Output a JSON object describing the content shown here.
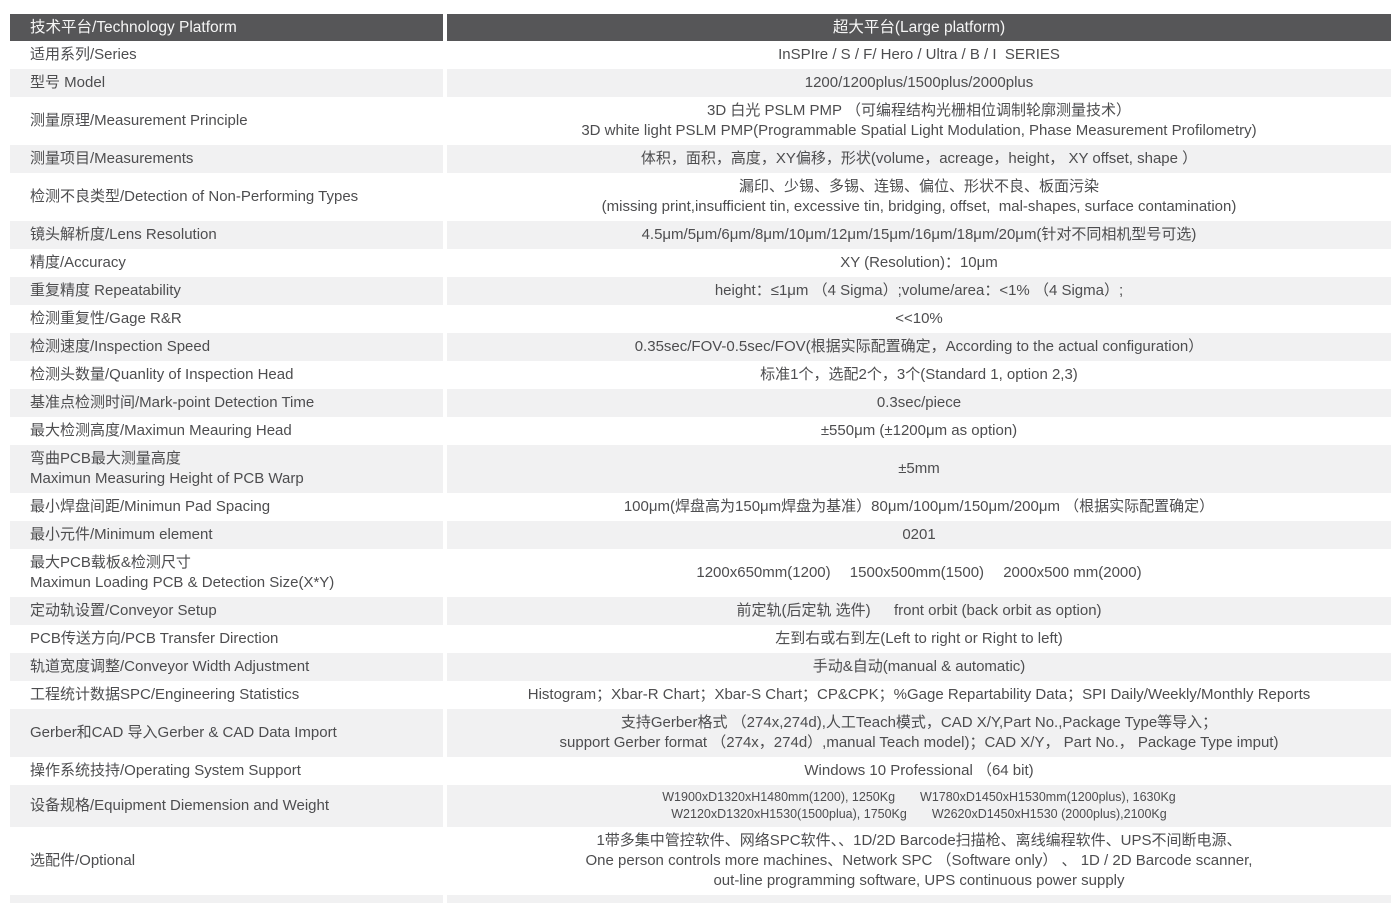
{
  "table": {
    "header": {
      "left": "技术平台/Technology Platform",
      "right": "超大平台(Large platform)"
    },
    "colors": {
      "header_bg": "#565658",
      "header_text": "#f6f6f6",
      "shaded_row_bg": "#f1f1f2",
      "body_text": "#4d4d4f"
    },
    "rows": [
      {
        "label": "适用系列/Series",
        "value": "InSPIre / S / F/ Hero / Ultra / B / I  SERIES"
      },
      {
        "label": "型号 Model",
        "value": "1200/1200plus/1500plus/2000plus"
      },
      {
        "label": "测量原理/Measurement Principle",
        "value": "3D 白光 PSLM PMP （可编程结构光栅相位调制轮廓测量技术）\n3D white light PSLM PMP(Programmable Spatial Light Modulation, Phase Measurement Profilometry)"
      },
      {
        "label": "测量项目/Measurements",
        "value": "体积，面积，高度，XY偏移，形状(volume，acreage，height， XY offset, shape ）"
      },
      {
        "label": "检测不良类型/Detection of Non-Performing Types",
        "value": "漏印、少锡、多锡、连锡、偏位、形状不良、板面污染\n(missing print,insufficient tin, excessive tin, bridging, offset,  mal-shapes, surface contamination)"
      },
      {
        "label": "镜头解析度/Lens Resolution",
        "value": "4.5μm/5μm/6μm/8μm/10μm/12μm/15μm/16μm/18μm/20μm(针对不同相机型号可选)"
      },
      {
        "label": "精度/Accuracy",
        "value": "XY (Resolution)：10μm"
      },
      {
        "label": "重复精度 Repeatability",
        "value": "height：≤1μm （4 Sigma）;volume/area：<1% （4 Sigma）;"
      },
      {
        "label": "检测重复性/Gage R&R",
        "value": "<<10%"
      },
      {
        "label": "检测速度/Inspection Speed",
        "value": "0.35sec/FOV-0.5sec/FOV(根据实际配置确定，According to the actual configuration）"
      },
      {
        "label": "检测头数量/Quanlity of Inspection Head",
        "value": "标准1个，选配2个，3个(Standard 1, option 2,3)"
      },
      {
        "label": "基准点检测时间/Mark-point Detection Time",
        "value": "0.3sec/piece"
      },
      {
        "label": "最大检测高度/Maximun Meauring Head",
        "value": "±550μm (±1200μm as option)"
      },
      {
        "label": "弯曲PCB最大测量高度\nMaximun Measuring Height of PCB Warp",
        "value": "±5mm"
      },
      {
        "label": "最小焊盘间距/Minimun Pad Spacing",
        "value": "100μm(焊盘高为150μm焊盘为基准）80μm/100μm/150μm/200μm （根据实际配置确定）"
      },
      {
        "label": "最小元件/Minimum element",
        "value": "0201"
      },
      {
        "label": "最大PCB载板&检测尺寸\nMaximun Loading PCB & Detection Size(X*Y)",
        "value": "1200x650mm(1200)　 1500x500mm(1500)　 2000x500 mm(2000)"
      },
      {
        "label": "定动轨设置/Conveyor Setup",
        "value": "前定轨(后定轨 选件)　  front orbit (back orbit as option)"
      },
      {
        "label": "PCB传送方向/PCB Transfer Direction",
        "value": "左到右或右到左(Left to right or Right to left)"
      },
      {
        "label": "轨道宽度调整/Conveyor Width Adjustment",
        "value": "手动&自动(manual & automatic)"
      },
      {
        "label": "工程统计数据SPC/Engineering Statistics",
        "value": "Histogram；Xbar-R Chart；Xbar-S Chart；CP&CPK；%Gage Repartability Data；SPI Daily/Weekly/Monthly Reports"
      },
      {
        "label": "Gerber和CAD 导入Gerber & CAD Data Import",
        "value": "支持Gerber格式 （274x,274d),人工Teach模式，CAD X/Y,Part No.,Package Type等导入；\nsupport Gerber format （274x，274d）,manual Teach model)；CAD X/Y， Part No.， Package Type imput)"
      },
      {
        "label": "操作系统技持/Operating System Support",
        "value": "Windows 10 Professional （64 bit)"
      },
      {
        "label": "设备规格/Equipment Diemension and Weight",
        "value": "W1900xD1320xH1480mm(1200), 1250Kg　　W1780xD1450xH1530mm(1200plus), 1630Kg\nW2120xD1320xH1530(1500plua), 1750Kg　　W2620xD1450xH1530 (2000plus),2100Kg",
        "small_value": true
      },
      {
        "label": "选配件/Optional",
        "value": "1带多集中管控软件、网络SPC软件、、1D/2D Barcode扫描枪、离线编程软件、UPS不间断电源、\nOne person controls more machines、Network SPC （Software only） 、 1D / 2D Barcode scanner,\nout-line programming software, UPS continuous power supply"
      }
    ]
  }
}
